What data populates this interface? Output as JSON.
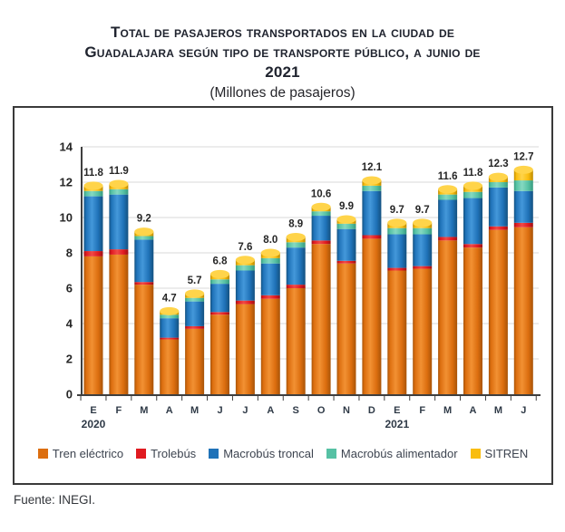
{
  "title": {
    "line1": "Total de pasajeros transportados en la ciudad de",
    "line2": "Guadalajara según tipo de transporte público, a junio de",
    "line3": "2021"
  },
  "subtitle": "(Millones de pasajeros)",
  "source": "Fuente: INEGI.",
  "chart_data": {
    "type": "bar",
    "stacked": true,
    "title": "Total de pasajeros transportados en la ciudad de Guadalajara según tipo de transporte público, a junio de 2021",
    "subtitle": "(Millones de pasajeros)",
    "xlabel": "",
    "ylabel": "",
    "ylim": [
      0,
      14
    ],
    "ytick_step": 2,
    "grid": true,
    "legend_position": "bottom",
    "categories": [
      "E",
      "F",
      "M",
      "A",
      "M",
      "J",
      "J",
      "A",
      "S",
      "O",
      "N",
      "D",
      "E",
      "F",
      "M",
      "A",
      "M",
      "J"
    ],
    "year_labels": [
      {
        "text": "2020",
        "category_index": 0
      },
      {
        "text": "2021",
        "category_index": 12
      }
    ],
    "totals": [
      "11.8",
      "11.9",
      "9.2",
      "4.7",
      "5.7",
      "6.8",
      "7.6",
      "8.0",
      "8.9",
      "10.6",
      "9.9",
      "12.1",
      "9.7",
      "9.7",
      "11.6",
      "11.8",
      "12.3",
      "12.7"
    ],
    "series": [
      {
        "name": "Tren eléctrico",
        "color": "#DC6E0F",
        "light": "#F29133",
        "dark": "#A85408",
        "values": [
          7.8,
          7.9,
          6.2,
          3.1,
          3.7,
          4.5,
          5.1,
          5.4,
          6.0,
          8.5,
          7.4,
          8.8,
          7.0,
          7.1,
          8.7,
          8.3,
          9.3,
          9.45
        ]
      },
      {
        "name": "Trolebús",
        "color": "#E01A20",
        "light": "#F04A46",
        "dark": "#9E1014",
        "values": [
          0.3,
          0.3,
          0.15,
          0.1,
          0.15,
          0.15,
          0.2,
          0.2,
          0.2,
          0.2,
          0.15,
          0.2,
          0.15,
          0.15,
          0.2,
          0.2,
          0.2,
          0.25
        ]
      },
      {
        "name": "Macrobús troncal",
        "color": "#1F72B8",
        "light": "#4498DA",
        "dark": "#14517F",
        "values": [
          3.1,
          3.1,
          2.4,
          1.1,
          1.4,
          1.6,
          1.7,
          1.8,
          2.1,
          1.4,
          1.8,
          2.5,
          1.9,
          1.8,
          2.1,
          2.6,
          2.2,
          1.8
        ]
      },
      {
        "name": "Macrobús alimentador",
        "color": "#56C1A4",
        "light": "#85D9C1",
        "dark": "#389B7E",
        "values": [
          0.3,
          0.3,
          0.2,
          0.2,
          0.2,
          0.25,
          0.3,
          0.3,
          0.3,
          0.25,
          0.3,
          0.3,
          0.35,
          0.35,
          0.3,
          0.35,
          0.3,
          0.6
        ]
      },
      {
        "name": "SITREN",
        "color": "#F9BD0F",
        "light": "#FFD44A",
        "dark": "#BE8B00",
        "values": [
          0.3,
          0.3,
          0.25,
          0.2,
          0.25,
          0.3,
          0.3,
          0.3,
          0.3,
          0.25,
          0.25,
          0.3,
          0.3,
          0.3,
          0.3,
          0.35,
          0.3,
          0.6
        ]
      }
    ]
  }
}
